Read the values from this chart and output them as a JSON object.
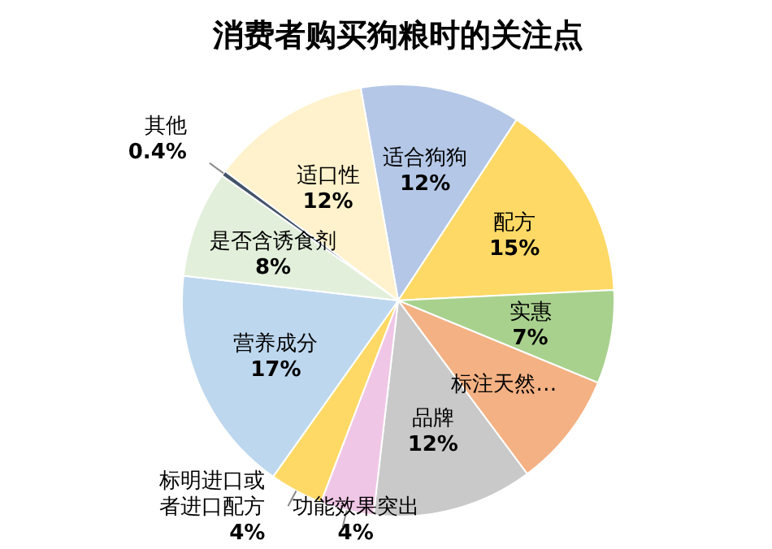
{
  "chart_data": {
    "type": "pie",
    "title": "消费者购买狗粮时的关注点",
    "categories": [
      "适合狗狗",
      "配方",
      "实惠",
      "标注天然…",
      "品牌",
      "功能效果突出",
      "标明进口或者进口配方",
      "营养成分",
      "是否含诱食剂",
      "其他",
      "适口性"
    ],
    "values": [
      12,
      15,
      7,
      8.6,
      12,
      4,
      4,
      17,
      8,
      0.4,
      12
    ],
    "value_labels": [
      "12%",
      "15%",
      "7%",
      null,
      "12%",
      "4%",
      "4%",
      "17%",
      "8%",
      "0.4%",
      "12%"
    ],
    "colors": [
      "#b4c7e7",
      "#ffd966",
      "#a9d18e",
      "#f4b183",
      "#c9c9c9",
      "#f0c6e6",
      "#ffd966",
      "#bdd7ee",
      "#e2efda",
      "#44546a",
      "#fff2cc"
    ],
    "legend": false
  }
}
